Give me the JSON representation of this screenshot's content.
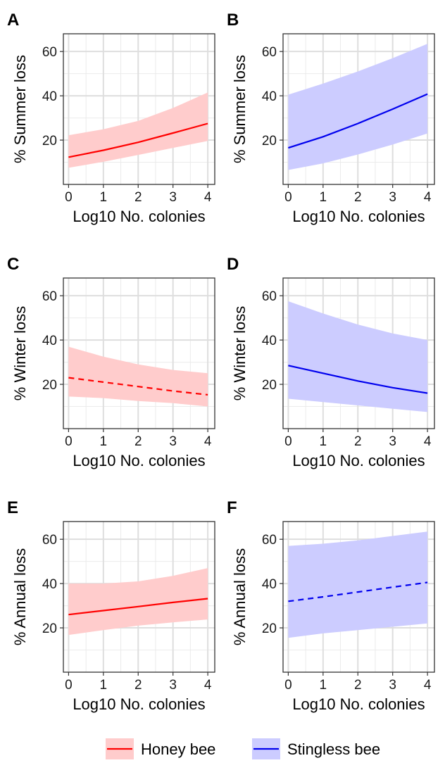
{
  "legend": {
    "placement": "bottom",
    "items": [
      {
        "label": "Honey bee",
        "line_color": "#ff0000",
        "fill_color": "#ffcccc"
      },
      {
        "label": "Stingless bee",
        "line_color": "#0000ee",
        "fill_color": "#ccccff"
      }
    ]
  },
  "chart_data": [
    {
      "panel": "A",
      "type": "line",
      "xlabel": "Log10 No. colonies",
      "ylabel": "% Summer loss",
      "xlim": [
        -0.15,
        4.2
      ],
      "ylim": [
        0,
        68
      ],
      "xticks": [
        0,
        1,
        2,
        3,
        4
      ],
      "yticks": [
        20,
        40,
        60
      ],
      "grid": true,
      "series": [
        {
          "name": "Honey bee",
          "linestyle": "solid",
          "x": [
            0,
            1,
            2,
            3,
            4
          ],
          "y": [
            12.3,
            15.4,
            19.0,
            23.2,
            27.5
          ],
          "lower": [
            7.5,
            10.2,
            13.3,
            16.5,
            19.6
          ],
          "upper": [
            22.2,
            24.9,
            28.7,
            34.5,
            41.5
          ]
        }
      ]
    },
    {
      "panel": "B",
      "type": "line",
      "xlabel": "Log10 No. colonies",
      "ylabel": "% Summer loss",
      "xlim": [
        -0.15,
        4.2
      ],
      "ylim": [
        0,
        68
      ],
      "xticks": [
        0,
        1,
        2,
        3,
        4
      ],
      "yticks": [
        20,
        40,
        60
      ],
      "grid": true,
      "series": [
        {
          "name": "Stingless bee",
          "linestyle": "solid",
          "x": [
            0,
            1,
            2,
            3,
            4
          ],
          "y": [
            16.5,
            21.5,
            27.5,
            34.0,
            40.8
          ],
          "lower": [
            6.5,
            9.5,
            13.5,
            18.0,
            23.0
          ],
          "upper": [
            40.5,
            45.5,
            51.0,
            57.0,
            63.5
          ]
        }
      ]
    },
    {
      "panel": "C",
      "type": "line",
      "xlabel": "Log10 No. colonies",
      "ylabel": "% Winter loss",
      "xlim": [
        -0.15,
        4.2
      ],
      "ylim": [
        0,
        68
      ],
      "xticks": [
        0,
        1,
        2,
        3,
        4
      ],
      "yticks": [
        20,
        40,
        60
      ],
      "grid": true,
      "series": [
        {
          "name": "Honey bee",
          "linestyle": "dashed",
          "x": [
            0,
            1,
            2,
            3,
            4
          ],
          "y": [
            23.0,
            21.0,
            19.0,
            17.0,
            15.3
          ],
          "lower": [
            14.5,
            13.8,
            12.5,
            11.5,
            10.0
          ],
          "upper": [
            37.0,
            32.5,
            29.0,
            26.5,
            25.0
          ]
        }
      ]
    },
    {
      "panel": "D",
      "type": "line",
      "xlabel": "Log10 No. colonies",
      "ylabel": "% Winter loss",
      "xlim": [
        -0.15,
        4.2
      ],
      "ylim": [
        0,
        68
      ],
      "xticks": [
        0,
        1,
        2,
        3,
        4
      ],
      "yticks": [
        20,
        40,
        60
      ],
      "grid": true,
      "series": [
        {
          "name": "Stingless bee",
          "linestyle": "solid",
          "x": [
            0,
            1,
            2,
            3,
            4
          ],
          "y": [
            28.5,
            25.0,
            21.5,
            18.5,
            16.0
          ],
          "lower": [
            13.5,
            12.0,
            10.5,
            9.0,
            7.5
          ],
          "upper": [
            57.5,
            52.0,
            47.0,
            43.0,
            40.0
          ]
        }
      ]
    },
    {
      "panel": "E",
      "type": "line",
      "xlabel": "Log10 No. colonies",
      "ylabel": "% Annual loss",
      "xlim": [
        -0.15,
        4.2
      ],
      "ylim": [
        0,
        68
      ],
      "xticks": [
        0,
        1,
        2,
        3,
        4
      ],
      "yticks": [
        20,
        40,
        60
      ],
      "grid": true,
      "series": [
        {
          "name": "Honey bee",
          "linestyle": "solid",
          "x": [
            0,
            1,
            2,
            3,
            4
          ],
          "y": [
            26.0,
            27.8,
            29.6,
            31.5,
            33.2
          ],
          "lower": [
            16.8,
            19.0,
            21.0,
            22.5,
            23.8
          ],
          "upper": [
            40.0,
            40.0,
            41.0,
            43.5,
            47.0
          ]
        }
      ]
    },
    {
      "panel": "F",
      "type": "line",
      "xlabel": "Log10 No. colonies",
      "ylabel": "% Annual loss",
      "xlim": [
        -0.15,
        4.2
      ],
      "ylim": [
        0,
        68
      ],
      "xticks": [
        0,
        1,
        2,
        3,
        4
      ],
      "yticks": [
        20,
        40,
        60
      ],
      "grid": true,
      "series": [
        {
          "name": "Stingless bee",
          "linestyle": "dashed",
          "x": [
            0,
            1,
            2,
            3,
            4
          ],
          "y": [
            32.0,
            34.0,
            36.2,
            38.4,
            40.5
          ],
          "lower": [
            15.5,
            17.5,
            19.0,
            20.5,
            22.0
          ],
          "upper": [
            57.0,
            58.0,
            59.5,
            61.5,
            63.5
          ]
        }
      ]
    }
  ]
}
